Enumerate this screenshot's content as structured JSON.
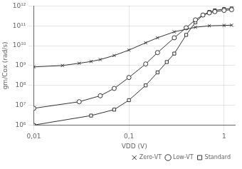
{
  "chart_data": {
    "type": "line",
    "xlabel": "VDD (V)",
    "ylabel": "gm/Cox (rad/s)",
    "log": true,
    "xlim": [
      0.01,
      1.3
    ],
    "ylim": [
      1000000.0,
      1000000000000.0
    ],
    "xticks": [
      {
        "value": 0.01,
        "label": "0,01"
      },
      {
        "value": 0.1,
        "label": "0,1"
      },
      1
    ],
    "yticks": [
      {
        "value": 1000000.0,
        "label": "10⁶"
      },
      {
        "value": 10000000.0,
        "label": "10⁷"
      },
      {
        "value": 100000000.0,
        "label": "10⁸"
      },
      {
        "value": 1000000000.0,
        "label": "10⁹"
      },
      {
        "value": 10000000000.0,
        "label": "10¹⁰"
      },
      {
        "value": 100000000000.0,
        "label": "10¹¹"
      },
      {
        "value": 1000000000000.0,
        "label": "10¹²"
      }
    ],
    "grid": true,
    "legend": "lower right",
    "series": [
      {
        "name": "Zero-VT",
        "color": "#333333",
        "marker": "x",
        "x": [
          0.01,
          0.02,
          0.03,
          0.04,
          0.05,
          0.07,
          0.1,
          0.15,
          0.2,
          0.3,
          0.5,
          0.7,
          1.0,
          1.2
        ],
        "values": [
          850000000.0,
          1000000000.0,
          1300000000.0,
          1600000000.0,
          2000000000.0,
          3200000000.0,
          6000000000.0,
          14000000000.0,
          25000000000.0,
          50000000000.0,
          85000000000.0,
          100000000000.0,
          105000000000.0,
          108000000000.0
        ]
      },
      {
        "name": "Low-VT",
        "color": "#333333",
        "marker": "circle",
        "x": [
          0.01,
          0.03,
          0.05,
          0.07,
          0.1,
          0.15,
          0.2,
          0.3,
          0.4,
          0.5,
          0.6,
          0.7,
          0.8,
          1.0,
          1.2
        ],
        "values": [
          7000000.0,
          15000000.0,
          30000000.0,
          70000000.0,
          250000000.0,
          1200000000.0,
          4500000000.0,
          25000000000.0,
          80000000000.0,
          200000000000.0,
          350000000000.0,
          450000000000.0,
          520000000000.0,
          600000000000.0,
          650000000000.0
        ]
      },
      {
        "name": "Standard",
        "color": "#333333",
        "marker": "square",
        "x": [
          0.01,
          0.04,
          0.07,
          0.1,
          0.15,
          0.2,
          0.25,
          0.3,
          0.4,
          0.5,
          0.6,
          0.7,
          0.8,
          1.0,
          1.2
        ],
        "values": [
          1000000.0,
          3000000.0,
          6000000.0,
          18000000.0,
          100000000.0,
          450000000.0,
          1500000000.0,
          4000000000.0,
          35000000000.0,
          150000000000.0,
          350000000000.0,
          500000000000.0,
          600000000000.0,
          700000000000.0,
          750000000000.0
        ]
      }
    ]
  }
}
